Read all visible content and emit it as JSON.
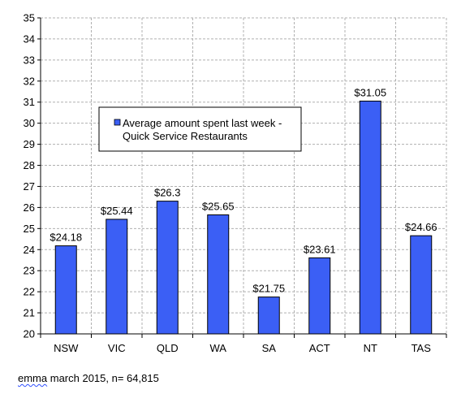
{
  "chart_data": {
    "type": "bar",
    "categories": [
      "NSW",
      "VIC",
      "QLD",
      "WA",
      "SA",
      "ACT",
      "NT",
      "TAS"
    ],
    "series": [
      {
        "name": "Average amount spent last week - Quick Service Restaurants",
        "values": [
          24.18,
          25.44,
          26.3,
          25.65,
          21.75,
          23.61,
          31.05,
          24.66
        ],
        "labels": [
          "$24.18",
          "$25.44",
          "$26.3",
          "$25.65",
          "$21.75",
          "$23.61",
          "$31.05",
          "$24.66"
        ]
      }
    ],
    "legend_lines": [
      "Average amount spent last week -",
      "Quick Service Restaurants"
    ],
    "ylim": [
      20,
      35
    ],
    "ytick_step": 1,
    "grid": true,
    "legend_position": "upper-left inside plot",
    "colors": {
      "bar": "#3b5ff5",
      "grid": "#b0b0b0",
      "axis": "#000000"
    }
  },
  "caption": {
    "word": "emma",
    "rest": " march 2015, n= 64,815"
  }
}
